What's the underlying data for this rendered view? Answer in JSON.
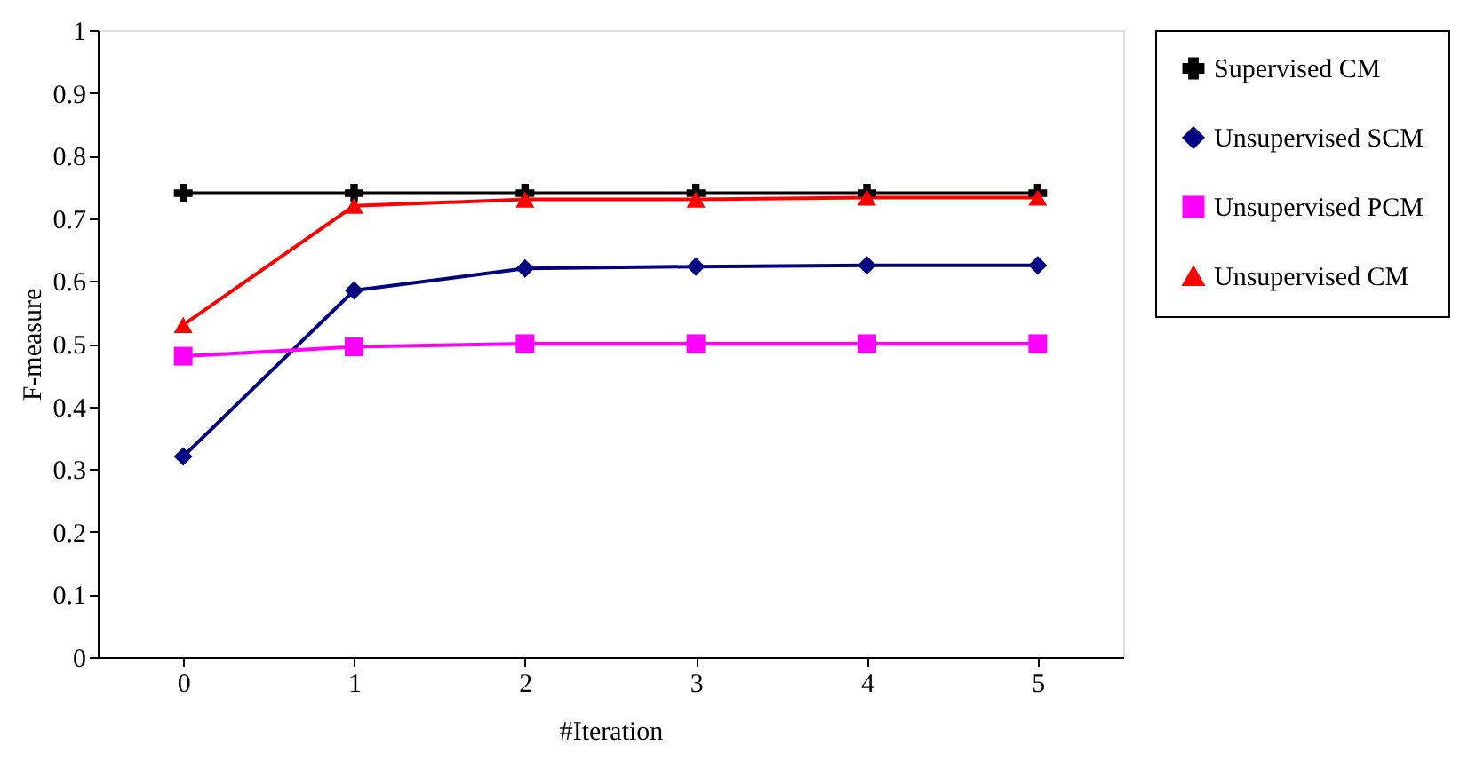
{
  "chart_data": {
    "type": "line",
    "xlabel": "#Iteration",
    "ylabel": "F-measure",
    "categories": [
      "0",
      "1",
      "2",
      "3",
      "4",
      "5"
    ],
    "series": [
      {
        "name": "Supervised CM",
        "color": "#000000",
        "marker": "cross",
        "values": [
          0.74,
          0.74,
          0.74,
          0.74,
          0.74,
          0.74
        ]
      },
      {
        "name": "Unsupervised SCM",
        "color": "#000080",
        "marker": "diamond",
        "values": [
          0.32,
          0.585,
          0.62,
          0.623,
          0.625,
          0.625
        ]
      },
      {
        "name": "Unsupervised PCM",
        "color": "#ff00ff",
        "marker": "square",
        "values": [
          0.48,
          0.495,
          0.5,
          0.5,
          0.5,
          0.5
        ]
      },
      {
        "name": "Unsupervised CM",
        "color": "#ff0000",
        "marker": "triangle",
        "values": [
          0.53,
          0.72,
          0.73,
          0.73,
          0.733,
          0.733
        ]
      }
    ],
    "ylim": [
      0,
      1
    ],
    "yticks": [
      0,
      0.1,
      0.2,
      0.3,
      0.4,
      0.5,
      0.6,
      0.7,
      0.8,
      0.9,
      1
    ],
    "grid": false,
    "legend": "right",
    "line_style": "solid"
  }
}
